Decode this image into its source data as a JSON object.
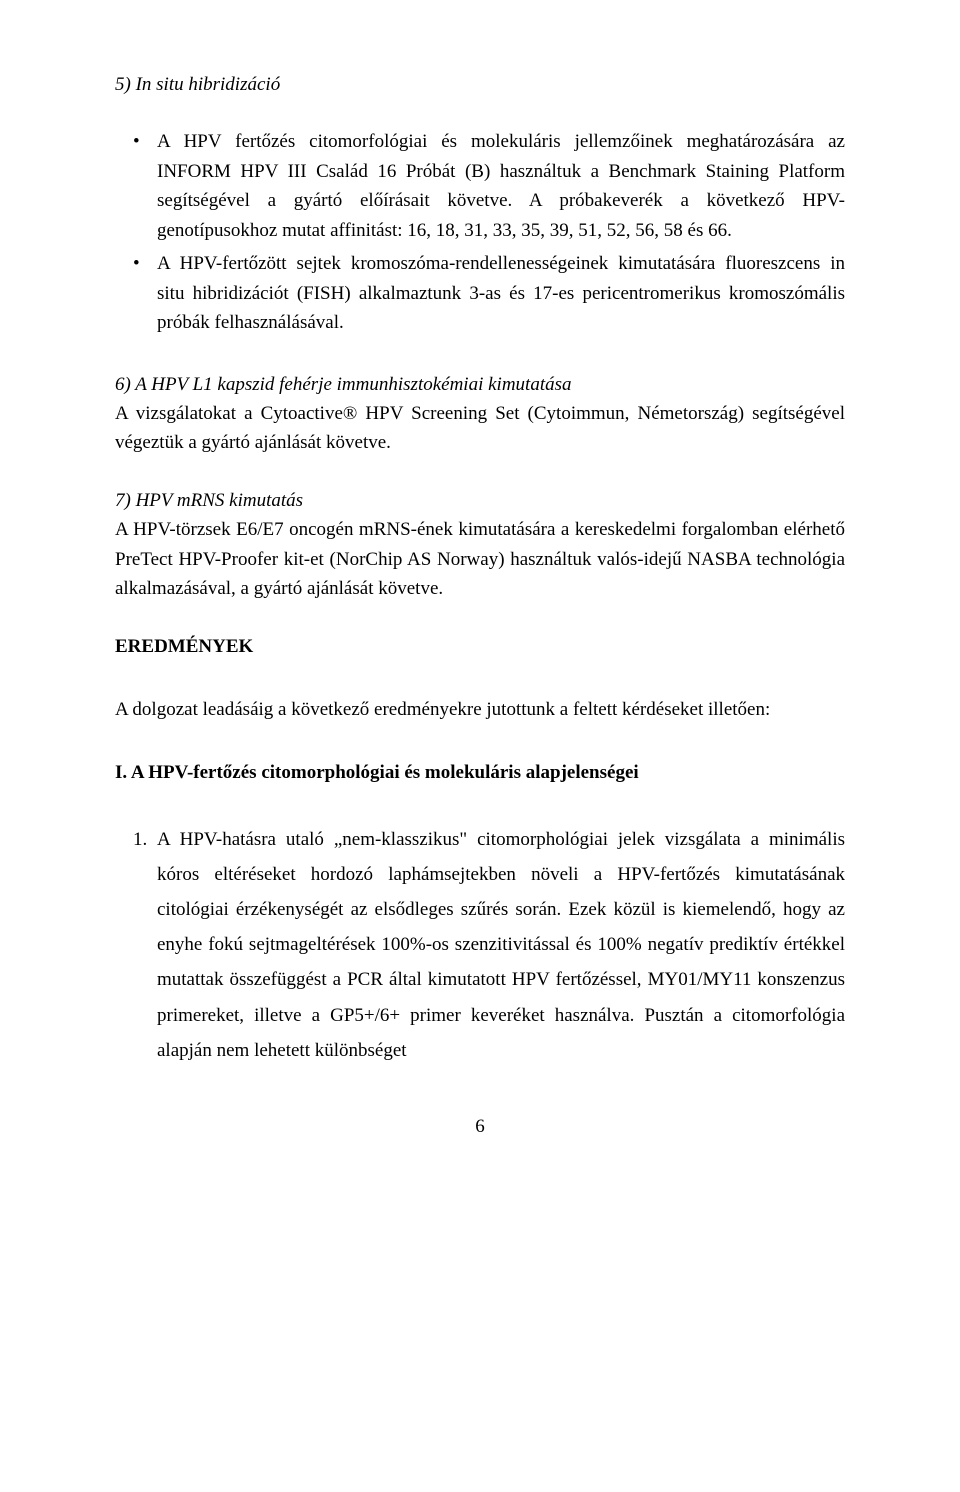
{
  "colors": {
    "background": "#ffffff",
    "text": "#000000"
  },
  "typography": {
    "font_family": "Times New Roman",
    "body_fontsize_pt": 14,
    "line_height_body": 1.55,
    "line_height_numbered": 1.85
  },
  "section5": {
    "title": "5) In situ hibridizáció",
    "bullets": [
      "A HPV fertőzés citomorfológiai és molekuláris jellemzőinek meghatározására az INFORM HPV III Család 16 Próbát (B) használtuk a Benchmark Staining Platform segítségével a gyártó előírásait követve. A próbakeverék a következő HPV-genotípusokhoz mutat affinitást: 16, 18, 31, 33, 35, 39, 51, 52, 56, 58 és 66.",
      "A HPV-fertőzött sejtek kromoszóma-rendellenességeinek kimutatására fluoreszcens in situ hibridizációt (FISH) alkalmaztunk 3-as és 17-es pericentromerikus kromoszómális próbák felhasználásával."
    ]
  },
  "section6": {
    "title": "6) A HPV L1 kapszid fehérje immunhisztokémiai kimutatása",
    "body": "A vizsgálatokat a Cytoactive® HPV Screening Set (Cytoimmun, Németország) segítségével végeztük a gyártó ajánlását követve."
  },
  "section7": {
    "title": "7) HPV mRNS kimutatás",
    "body": "A HPV-törzsek E6/E7 oncogén mRNS-ének kimutatására a kereskedelmi forgalomban elérhető PreTect HPV-Proofer kit-et (NorChip AS Norway) használtuk valós-idejű NASBA technológia alkalmazásával, a gyártó ajánlását követve."
  },
  "results": {
    "heading": "EREDMÉNYEK",
    "intro": "A dolgozat leadásáig a következő eredményekre jutottunk a feltett kérdéseket illetően:",
    "subheading": "I. A HPV-fertőzés citomorphológiai és molekuláris alapjelenségei",
    "items": [
      {
        "num": "1.",
        "text": "A HPV-hatásra utaló „nem-klasszikus\" citomorphológiai jelek vizsgálata a minimális kóros eltéréseket hordozó laphámsejtekben növeli a HPV-fertőzés kimutatásának citológiai érzékenységét az elsődleges szűrés során. Ezek közül is kiemelendő, hogy az enyhe fokú sejtmageltérések 100%-os szenzitivitással és 100% negatív prediktív értékkel mutattak összefüggést a PCR által kimutatott HPV fertőzéssel, MY01/MY11 konszenzus primereket, illetve a GP5+/6+ primer keveréket használva. Pusztán a citomorfológia alapján nem lehetett különbséget"
      }
    ]
  },
  "page_number": "6"
}
